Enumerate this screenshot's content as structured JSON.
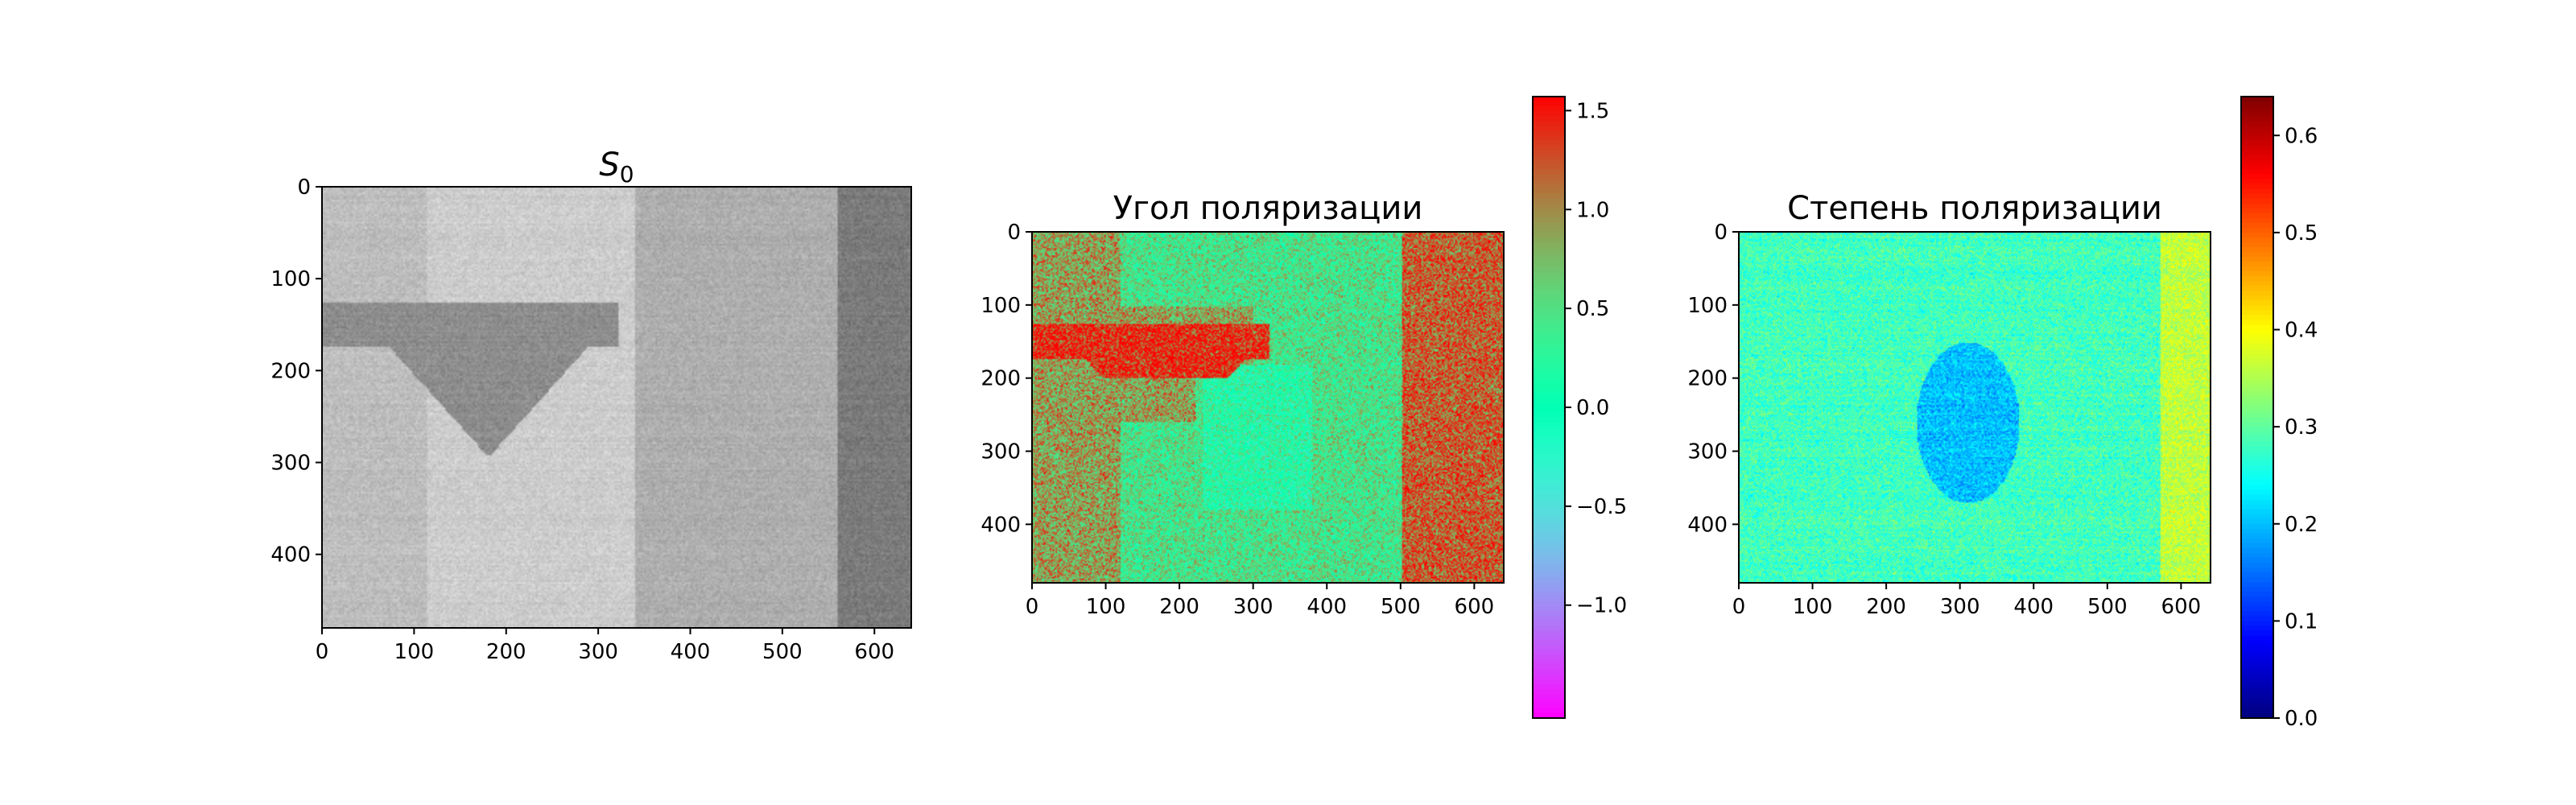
{
  "chart_data": [
    {
      "type": "heatmap",
      "title": "S",
      "title_subscript": "0",
      "colormap": "gray",
      "x_ticks": [
        0,
        100,
        200,
        300,
        400,
        500,
        600
      ],
      "y_ticks": [
        0,
        100,
        200,
        300,
        400
      ],
      "xlim": [
        0,
        640
      ],
      "ylim": [
        480,
        0
      ],
      "colorbar": null
    },
    {
      "type": "heatmap",
      "title": "Угол поляризации",
      "colormap": "rainbow",
      "x_ticks": [
        0,
        100,
        200,
        300,
        400,
        500,
        600
      ],
      "y_ticks": [
        0,
        100,
        200,
        300,
        400
      ],
      "xlim": [
        0,
        640
      ],
      "ylim": [
        480,
        0
      ],
      "colorbar": {
        "range": [
          -1.5708,
          1.5708
        ],
        "ticks": [
          1.5,
          1.0,
          0.5,
          0.0,
          -0.5,
          -1.0
        ],
        "tick_labels": [
          "1.5",
          "1.0",
          "0.5",
          "0.0",
          "−0.5",
          "−1.0"
        ]
      }
    },
    {
      "type": "heatmap",
      "title": "Степень поляризации",
      "colormap": "jet",
      "x_ticks": [
        0,
        100,
        200,
        300,
        400,
        500,
        600
      ],
      "y_ticks": [
        0,
        100,
        200,
        300,
        400
      ],
      "xlim": [
        0,
        640
      ],
      "ylim": [
        480,
        0
      ],
      "colorbar": {
        "range": [
          0.0,
          0.64
        ],
        "ticks": [
          0.6,
          0.5,
          0.4,
          0.3,
          0.2,
          0.1,
          0.0
        ],
        "tick_labels": [
          "0.6",
          "0.5",
          "0.4",
          "0.3",
          "0.2",
          "0.1",
          "0.0"
        ]
      }
    }
  ]
}
